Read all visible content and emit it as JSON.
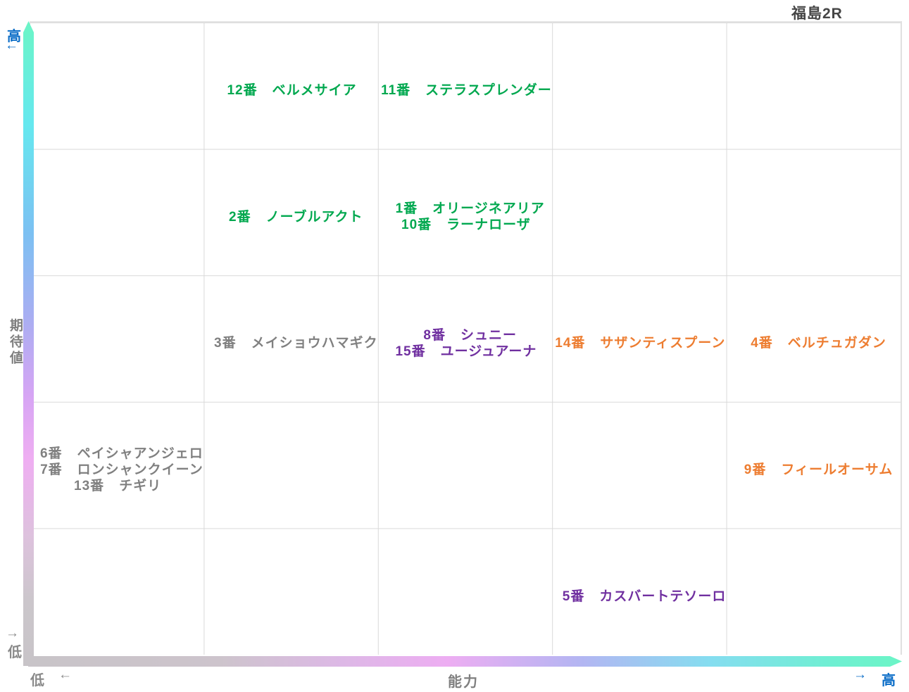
{
  "title": "福島2R",
  "colors": {
    "green": "#00a84f",
    "purple": "#7030a0",
    "orange": "#ed7d31",
    "gray": "#808080",
    "blue": "#0b6dc7",
    "axis_gray": "#8a8a8a",
    "grid_line": "#d9d9d9",
    "title_text": "#454545",
    "gradient_high": "#6bf5c6",
    "gradient_low": "#c8c4c8"
  },
  "axes": {
    "y": {
      "title": "期待値",
      "high_label": "高",
      "high_arrow": "←",
      "low_label": "低",
      "low_arrow": "→"
    },
    "x": {
      "title": "能力",
      "low_label": "低",
      "low_arrow": "←",
      "high_label": "高",
      "high_arrow": "→"
    }
  },
  "entries": [
    {
      "cell": "r1c2",
      "color": "green",
      "horses": [
        {
          "num": "12番",
          "name": "ベルメサイア"
        }
      ]
    },
    {
      "cell": "r1c3",
      "color": "green",
      "horses": [
        {
          "num": "11番",
          "name": "ステラスプレンダー"
        }
      ]
    },
    {
      "cell": "r2c2",
      "color": "green",
      "horses": [
        {
          "num": "2番",
          "name": "ノーブルアクト"
        }
      ]
    },
    {
      "cell": "r2c3",
      "color": "green",
      "horses": [
        {
          "num": "1番",
          "name": "オリージネアリア"
        },
        {
          "num": "10番",
          "name": "ラーナローザ"
        }
      ]
    },
    {
      "cell": "r3c2",
      "color": "gray",
      "horses": [
        {
          "num": "3番",
          "name": "メイショウハマギク"
        }
      ]
    },
    {
      "cell": "r3c3",
      "color": "purple",
      "horses": [
        {
          "num": "8番",
          "name": "シュニー"
        },
        {
          "num": "15番",
          "name": "ユージュアーナ"
        }
      ]
    },
    {
      "cell": "r3c4",
      "color": "orange",
      "horses": [
        {
          "num": "14番",
          "name": "サザンティスプーン"
        }
      ]
    },
    {
      "cell": "r3c5",
      "color": "orange",
      "horses": [
        {
          "num": "4番",
          "name": "ベルチュガダン"
        }
      ]
    },
    {
      "cell": "r4c1",
      "color": "gray",
      "horses": [
        {
          "num": "6番",
          "name": "ペイシャアンジェロ"
        },
        {
          "num": "7番",
          "name": "ロンシャンクイーン"
        },
        {
          "num": "13番",
          "name": "チギリ"
        }
      ]
    },
    {
      "cell": "r4c5",
      "color": "orange",
      "horses": [
        {
          "num": "9番",
          "name": "フィールオーサム"
        }
      ]
    },
    {
      "cell": "r5c4",
      "color": "purple",
      "horses": [
        {
          "num": "5番",
          "name": "カスバートテソーロ"
        }
      ]
    }
  ],
  "chart_data": {
    "type": "scatter",
    "title": "福島2R",
    "xlabel": "能力",
    "ylabel": "期待値",
    "x_axis": {
      "low": "低",
      "high": "高",
      "range": [
        1,
        5
      ]
    },
    "y_axis": {
      "low": "低",
      "high": "高",
      "range": [
        1,
        5
      ]
    },
    "grid": "5x5, gridlines on",
    "legend": "none",
    "points": [
      {
        "label": "12番 ベルメサイア",
        "x": 2,
        "y": 5,
        "color": "#00a84f"
      },
      {
        "label": "11番 ステラスプレンダー",
        "x": 3,
        "y": 5,
        "color": "#00a84f"
      },
      {
        "label": "2番 ノーブルアクト",
        "x": 2,
        "y": 4,
        "color": "#00a84f"
      },
      {
        "label": "1番 オリージネアリア",
        "x": 3,
        "y": 4,
        "color": "#00a84f"
      },
      {
        "label": "10番 ラーナローザ",
        "x": 3,
        "y": 4,
        "color": "#00a84f"
      },
      {
        "label": "3番 メイショウハマギク",
        "x": 2,
        "y": 3,
        "color": "#808080"
      },
      {
        "label": "8番 シュニー",
        "x": 3,
        "y": 3,
        "color": "#7030a0"
      },
      {
        "label": "15番 ユージュアーナ",
        "x": 3,
        "y": 3,
        "color": "#7030a0"
      },
      {
        "label": "14番 サザンティスプーン",
        "x": 4,
        "y": 3,
        "color": "#ed7d31"
      },
      {
        "label": "4番 ベルチュガダン",
        "x": 5,
        "y": 3,
        "color": "#ed7d31"
      },
      {
        "label": "6番 ペイシャアンジェロ",
        "x": 1,
        "y": 2,
        "color": "#808080"
      },
      {
        "label": "7番 ロンシャンクイーン",
        "x": 1,
        "y": 2,
        "color": "#808080"
      },
      {
        "label": "13番 チギリ",
        "x": 1,
        "y": 2,
        "color": "#808080"
      },
      {
        "label": "9番 フィールオーサム",
        "x": 5,
        "y": 2,
        "color": "#ed7d31"
      },
      {
        "label": "5番 カスバートテソーロ",
        "x": 4,
        "y": 1,
        "color": "#7030a0"
      }
    ]
  }
}
